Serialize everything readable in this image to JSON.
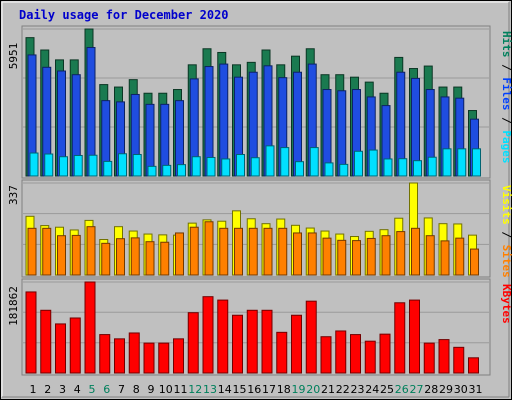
{
  "chart_data": {
    "type": "bar",
    "title": "Daily usage for December 2020",
    "categories": [
      "1",
      "2",
      "3",
      "4",
      "5",
      "6",
      "7",
      "8",
      "9",
      "10",
      "11",
      "12",
      "13",
      "14",
      "15",
      "16",
      "17",
      "18",
      "19",
      "20",
      "21",
      "22",
      "23",
      "24",
      "25",
      "26",
      "27",
      "28",
      "29",
      "30",
      "31"
    ],
    "weekend_days": [
      "5",
      "6",
      "12",
      "13",
      "19",
      "20",
      "26",
      "27"
    ],
    "panels": [
      {
        "id": "requests",
        "ymax_label": "5951",
        "legend": [
          {
            "label": "Hits",
            "color": "#00805c"
          },
          {
            "label": "Files",
            "color": "#0040ff"
          },
          {
            "label": "Pages",
            "color": "#00e0ff"
          }
        ],
        "series": [
          {
            "name": "Hits",
            "color": "#1a7a50",
            "values": [
              5600,
              5100,
              4700,
              4700,
              5950,
              3700,
              3600,
              3900,
              3350,
              3350,
              3500,
              4500,
              5150,
              5000,
              4500,
              4600,
              5100,
              4500,
              4850,
              5150,
              4100,
              4100,
              4000,
              3800,
              3350,
              4800,
              4350,
              4450,
              3600,
              3600,
              2650
            ]
          },
          {
            "name": "Files",
            "color": "#1f4de0",
            "values": [
              4900,
              4400,
              4250,
              4100,
              5200,
              3050,
              3000,
              3300,
              2900,
              2900,
              3050,
              3930,
              4430,
              4530,
              4000,
              4200,
              4460,
              3980,
              4200,
              4530,
              3500,
              3450,
              3500,
              3200,
              2850,
              4200,
              3950,
              3500,
              3200,
              3150,
              2300
            ]
          },
          {
            "name": "Pages",
            "color": "#00e0ff",
            "values": [
              930,
              890,
              780,
              830,
              840,
              590,
              900,
              870,
              390,
              430,
              460,
              780,
              750,
              690,
              870,
              740,
              1220,
              1150,
              580,
              1150,
              530,
              470,
              1000,
              1050,
              690,
              700,
              620,
              760,
              1100,
              1100,
              1100
            ]
          }
        ]
      },
      {
        "id": "visits",
        "ymax_label": "337",
        "legend": [
          {
            "label": "Visits",
            "color": "#ffff00"
          },
          {
            "label": "Sites",
            "color": "#ff8000"
          }
        ],
        "series": [
          {
            "name": "Visits",
            "color": "#ffff00",
            "values": [
              215,
              181,
              175,
              165,
              200,
              130,
              177,
              161,
              150,
              147,
              146,
              190,
              202,
              197,
              235,
              206,
              188,
              205,
              182,
              172,
              161,
              150,
              141,
              160,
              166,
              208,
              337,
              209,
              188,
              187,
              146
            ]
          },
          {
            "name": "Sites",
            "color": "#ff8000",
            "values": [
              171,
              171,
              144,
              145,
              177,
              116,
              133,
              136,
              122,
              120,
              154,
              175,
              195,
              171,
              171,
              171,
              171,
              171,
              154,
              154,
              135,
              127,
              126,
              134,
              144,
              159,
              171,
              144,
              125,
              135,
              95
            ]
          }
        ]
      },
      {
        "id": "kbytes",
        "ymax_label": "181862",
        "legend": [
          {
            "label": "KBytes",
            "color": "#ff0000"
          }
        ],
        "series": [
          {
            "name": "KBytes",
            "color": "#ff0000",
            "values": [
              161990,
              125330,
              98100,
              109940,
              181860,
              76800,
              68270,
              80000,
              59730,
              59730,
              68270,
              120540,
              152530,
              145710,
              115410,
              125330,
              125330,
              81280,
              115410,
              143540,
              72530,
              84000,
              76800,
              63570,
              77650,
              140360,
              145710,
              59730,
              66780,
              51300,
              30360
            ]
          }
        ]
      }
    ]
  }
}
